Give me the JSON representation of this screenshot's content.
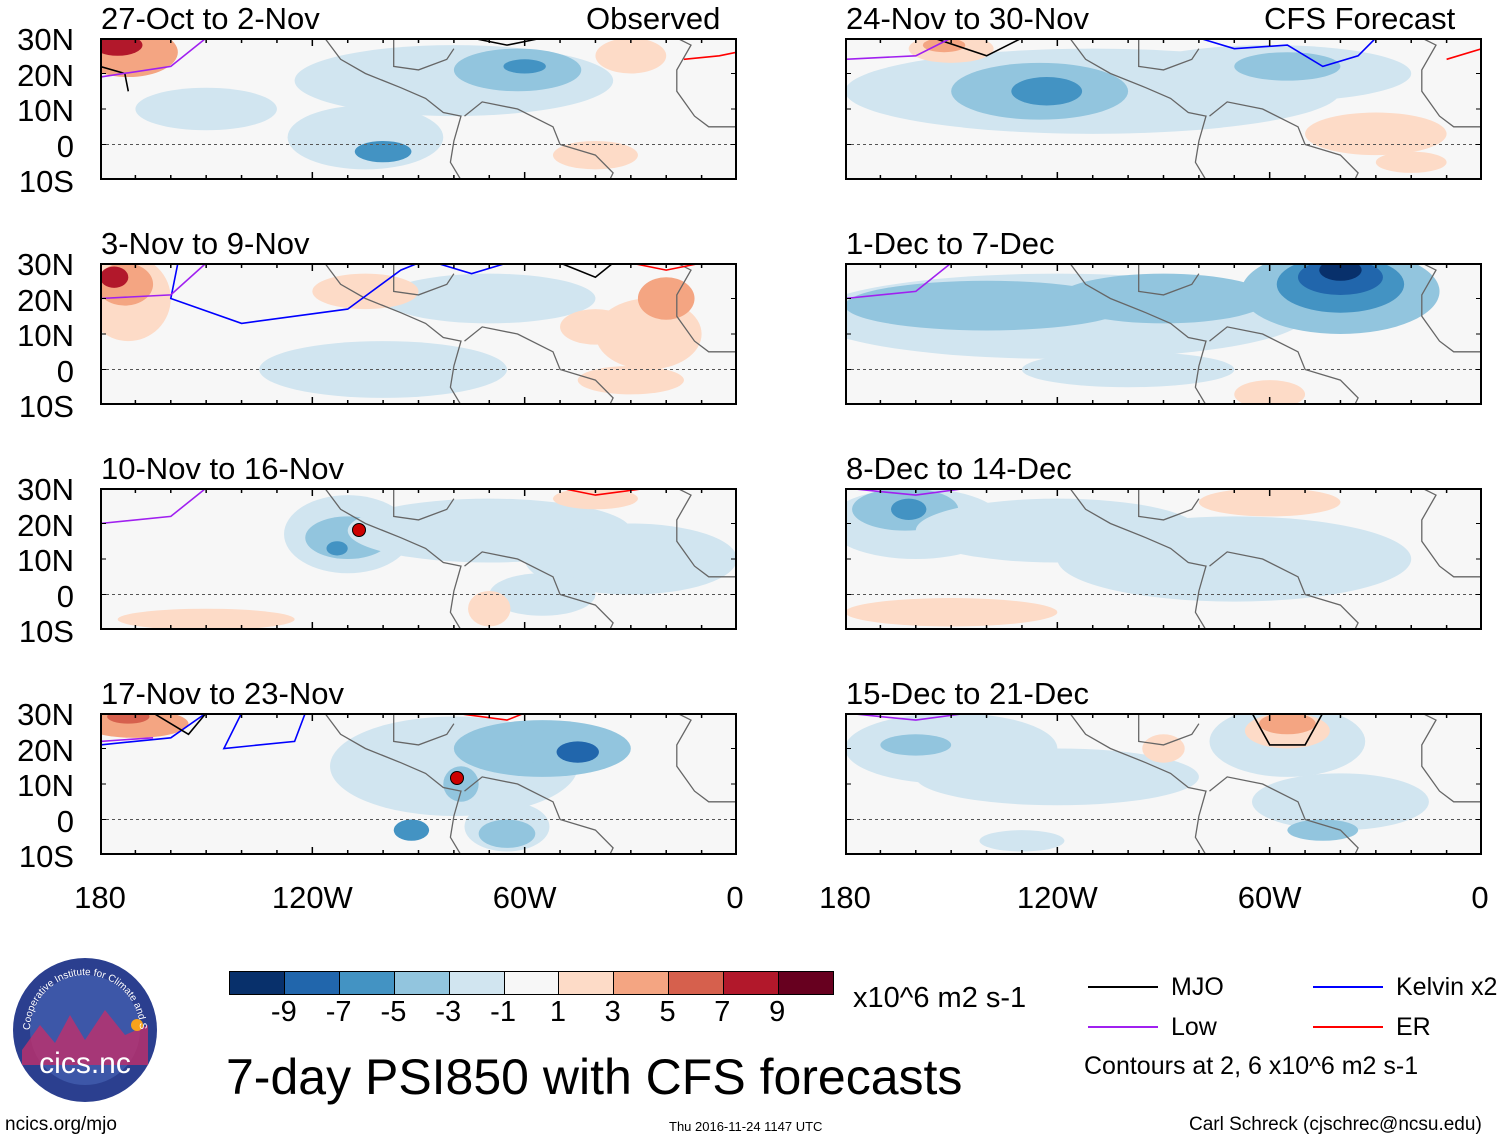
{
  "title": "7-day PSI850 with CFS forecasts",
  "columns": {
    "left_tag": "Observed",
    "right_tag": "CFS Forecast"
  },
  "panels_left": [
    "27-Oct to 2-Nov",
    "3-Nov to 9-Nov",
    "10-Nov to 16-Nov",
    "17-Nov to 23-Nov"
  ],
  "panels_right": [
    "24-Nov to 30-Nov",
    "1-Dec to 7-Dec",
    "8-Dec to 14-Dec",
    "15-Dec to 21-Dec"
  ],
  "lat_labels": [
    "30N",
    "20N",
    "10N",
    "0",
    "10S"
  ],
  "lon_labels": [
    "180",
    "120W",
    "60W",
    "0"
  ],
  "colorbar": {
    "labels": [
      "-9",
      "-7",
      "-5",
      "-3",
      "-1",
      "1",
      "3",
      "5",
      "7",
      "9"
    ],
    "colors": [
      "#08306b",
      "#2166ac",
      "#4393c3",
      "#92c5de",
      "#d1e5f0",
      "#f7f7f7",
      "#fddbc7",
      "#f4a582",
      "#d6604d",
      "#b2182b",
      "#67001f"
    ],
    "units": "x10^6 m2 s-1"
  },
  "legend": {
    "items": [
      {
        "label": "MJO",
        "color": "#000000"
      },
      {
        "label": "Low",
        "color": "#a020f0"
      },
      {
        "label": "Kelvin x2",
        "color": "#0000ff"
      },
      {
        "label": "ER",
        "color": "#ff0000"
      }
    ],
    "contours_note": "Contours at 2, 6 x10^6 m2 s-1"
  },
  "footer": {
    "url": "ncics.org/mjo",
    "timestamp": "Thu 2016-11-24 1147 UTC",
    "credit": "Carl Schreck (cjschrec@ncsu.edu)"
  },
  "logo": {
    "arc_text": "Cooperative Institute for Climate and Satellites",
    "name": "cics.nc"
  }
}
